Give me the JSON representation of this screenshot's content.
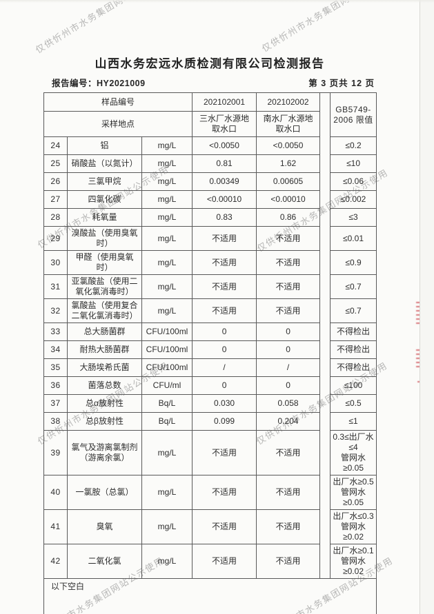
{
  "watermark": {
    "text": "仅供忻州市水务集团网站公示使用"
  },
  "header": {
    "title": "山西水务宏远水质检测有限公司检测报告",
    "report_no_label": "报告编号：",
    "report_no": "HY2021009",
    "page_info": "第 3 页共 12 页"
  },
  "table": {
    "head": {
      "sample_id_label": "样品编号",
      "sample_id_1": "202102001",
      "sample_id_2": "202102002",
      "location_label": "采样地点",
      "location_1": "三水厂水源地\n取水口",
      "location_2": "南水厂水源地\n取水口",
      "limit_header": "GB5749-\n2006 限值"
    },
    "rows": [
      {
        "no": "24",
        "param": "铝",
        "unit": "mg/L",
        "v1": "<0.0050",
        "v2": "<0.0050",
        "limit": "≤0.2"
      },
      {
        "no": "25",
        "param": "硝酸盐（以氮计）",
        "unit": "mg/L",
        "v1": "0.81",
        "v2": "1.62",
        "limit": "≤10"
      },
      {
        "no": "26",
        "param": "三氯甲烷",
        "unit": "mg/L",
        "v1": "0.00349",
        "v2": "0.00605",
        "limit": "≤0.06"
      },
      {
        "no": "27",
        "param": "四氯化碳",
        "unit": "mg/L",
        "v1": "<0.00010",
        "v2": "<0.00010",
        "limit": "≤0.002"
      },
      {
        "no": "28",
        "param": "耗氧量",
        "unit": "mg/L",
        "v1": "0.83",
        "v2": "0.86",
        "limit": "≤3"
      },
      {
        "no": "29",
        "param": "溴酸盐（使用臭氧时）",
        "unit": "mg/L",
        "v1": "不适用",
        "v2": "不适用",
        "limit": "≤0.01"
      },
      {
        "no": "30",
        "param": "甲醛（使用臭氧时）",
        "unit": "mg/L",
        "v1": "不适用",
        "v2": "不适用",
        "limit": "≤0.9"
      },
      {
        "no": "31",
        "param": "亚氯酸盐（使用二氧化氯消毒时）",
        "unit": "mg/L",
        "v1": "不适用",
        "v2": "不适用",
        "limit": "≤0.7"
      },
      {
        "no": "32",
        "param": "氯酸盐（使用复合二氧化氯消毒时）",
        "unit": "mg/L",
        "v1": "不适用",
        "v2": "不适用",
        "limit": "≤0.7"
      },
      {
        "no": "33",
        "param": "总大肠菌群",
        "unit": "CFU/100ml",
        "v1": "0",
        "v2": "0",
        "limit": "不得检出"
      },
      {
        "no": "34",
        "param": "耐热大肠菌群",
        "unit": "CFU/100ml",
        "v1": "0",
        "v2": "0",
        "limit": "不得检出"
      },
      {
        "no": "35",
        "param": "大肠埃希氏菌",
        "unit": "CFU/100ml",
        "v1": "/",
        "v2": "/",
        "limit": "不得检出"
      },
      {
        "no": "36",
        "param": "菌落总数",
        "unit": "CFU/ml",
        "v1": "0",
        "v2": "0",
        "limit": "≤100"
      },
      {
        "no": "37",
        "param": "总α放射性",
        "unit": "Bq/L",
        "v1": "0.030",
        "v2": "0.058",
        "limit": "≤0.5"
      },
      {
        "no": "38",
        "param": "总β放射性",
        "unit": "Bq/L",
        "v1": "0.099",
        "v2": "0.204",
        "limit": "≤1"
      },
      {
        "no": "39",
        "param": "氯气及游离氯制剂（游离余氯）",
        "unit": "mg/L",
        "v1": "不适用",
        "v2": "不适用",
        "limit": "0.3≤出厂水≤4\n管网水≥0.05"
      },
      {
        "no": "40",
        "param": "一氯胺（总氯）",
        "unit": "mg/L",
        "v1": "不适用",
        "v2": "不适用",
        "limit": "出厂水≥0.5\n管网水≥0.05"
      },
      {
        "no": "41",
        "param": "臭氧",
        "unit": "mg/L",
        "v1": "不适用",
        "v2": "不适用",
        "limit": "出厂水≤0.3\n管网水≥0.02"
      },
      {
        "no": "42",
        "param": "二氧化氯",
        "unit": "mg/L",
        "v1": "不适用",
        "v2": "不适用",
        "limit": "出厂水≥0.1\n管网水≥0.02"
      }
    ],
    "footer_note": "以下空白"
  }
}
